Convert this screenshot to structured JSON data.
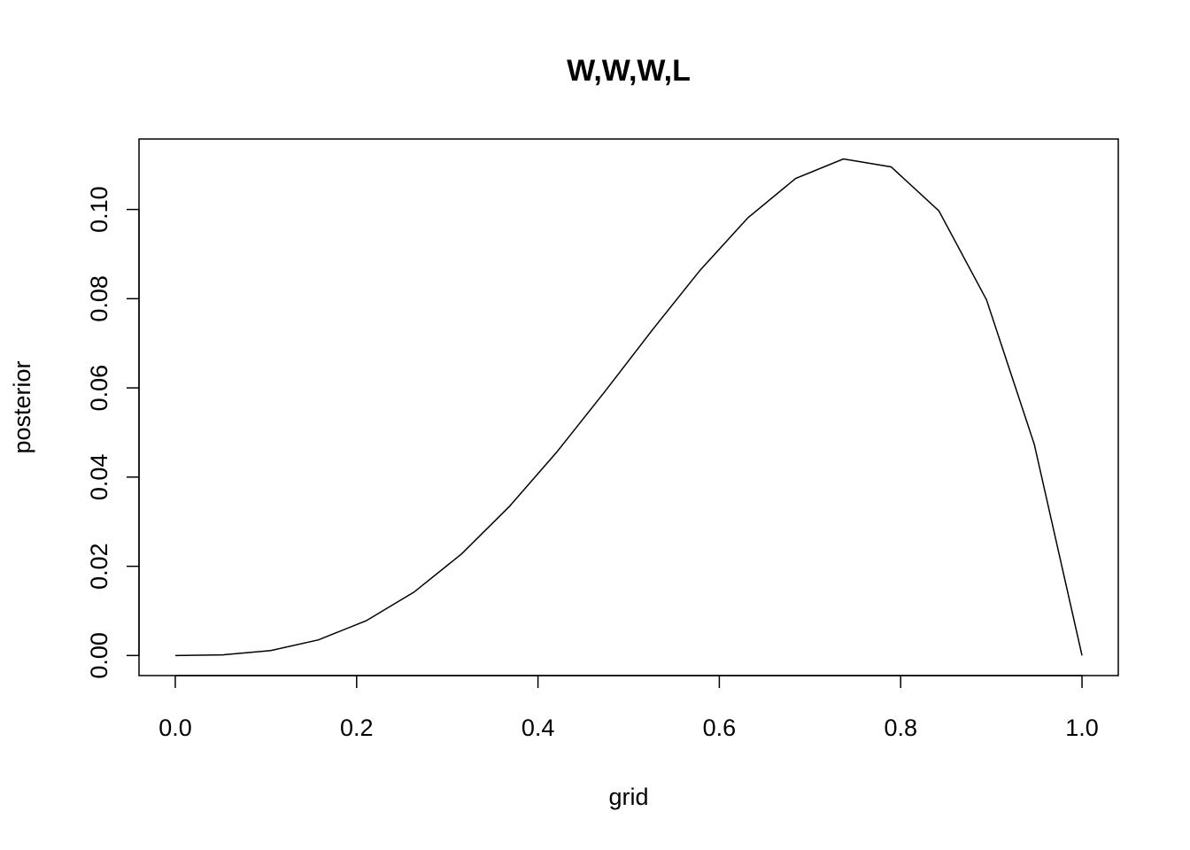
{
  "chart_data": {
    "type": "line",
    "title": "W,W,W,L",
    "x_label": "grid",
    "y_label": "posterior",
    "x": [
      0,
      0.0526,
      0.1053,
      0.1579,
      0.2105,
      0.2632,
      0.3158,
      0.3684,
      0.4211,
      0.4737,
      0.5263,
      0.5789,
      0.6316,
      0.6842,
      0.7368,
      0.7895,
      0.8421,
      0.8947,
      0.9474,
      1
    ],
    "series": [
      {
        "color": "#000000",
        "values": [
          0,
          0.000146,
          0.001104,
          0.003506,
          0.00779,
          0.014201,
          0.022786,
          0.0334,
          0.045702,
          0.059156,
          0.073032,
          0.086405,
          0.098155,
          0.106967,
          0.111333,
          0.109548,
          0.099713,
          0.079734,
          0.047325,
          0
        ]
      }
    ],
    "xlim": [
      -0.04,
      1.04
    ],
    "ylim": [
      -0.0045,
      0.1158
    ],
    "xticks": [
      {
        "value": 0,
        "label": "0.0"
      },
      0.2,
      0.4,
      0.6,
      0.8,
      {
        "value": 1,
        "label": "1.0"
      }
    ],
    "yticks": [
      {
        "value": 0,
        "label": "0.00"
      },
      0.02,
      0.04,
      0.06,
      0.08,
      {
        "value": 0.1,
        "label": "0.10"
      }
    ]
  }
}
